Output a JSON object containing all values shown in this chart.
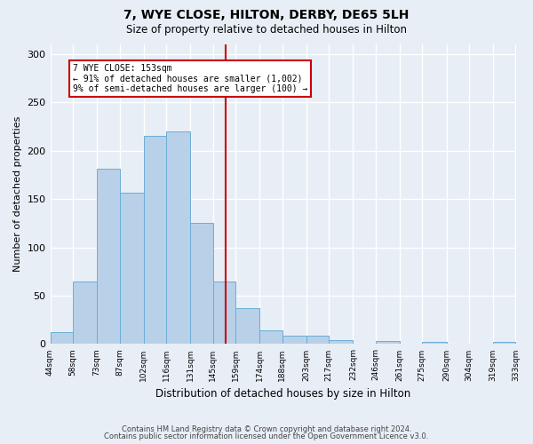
{
  "title": "7, WYE CLOSE, HILTON, DERBY, DE65 5LH",
  "subtitle": "Size of property relative to detached houses in Hilton",
  "xlabel": "Distribution of detached houses by size in Hilton",
  "ylabel": "Number of detached properties",
  "bar_color": "#b8d0e8",
  "bar_edge_color": "#6aaed6",
  "bg_color": "#e8eef6",
  "grid_color": "#ffffff",
  "bin_edges": [
    44,
    58,
    73,
    87,
    102,
    116,
    131,
    145,
    159,
    174,
    188,
    203,
    217,
    232,
    246,
    261,
    275,
    290,
    304,
    319,
    333
  ],
  "bin_labels": [
    "44sqm",
    "58sqm",
    "73sqm",
    "87sqm",
    "102sqm",
    "116sqm",
    "131sqm",
    "145sqm",
    "159sqm",
    "174sqm",
    "188sqm",
    "203sqm",
    "217sqm",
    "232sqm",
    "246sqm",
    "261sqm",
    "275sqm",
    "290sqm",
    "304sqm",
    "319sqm",
    "333sqm"
  ],
  "bar_heights": [
    12,
    65,
    181,
    157,
    215,
    220,
    125,
    65,
    37,
    14,
    9,
    9,
    4,
    0,
    3,
    0,
    2,
    0,
    0,
    2
  ],
  "vline_x": 153,
  "vline_color": "#cc0000",
  "annotation_title": "7 WYE CLOSE: 153sqm",
  "annotation_line1": "← 91% of detached houses are smaller (1,002)",
  "annotation_line2": "9% of semi-detached houses are larger (100) →",
  "annotation_box_color": "#ffffff",
  "annotation_box_edge": "#cc0000",
  "ylim": [
    0,
    310
  ],
  "yticks": [
    0,
    50,
    100,
    150,
    200,
    250,
    300
  ],
  "footer1": "Contains HM Land Registry data © Crown copyright and database right 2024.",
  "footer2": "Contains public sector information licensed under the Open Government Licence v3.0."
}
